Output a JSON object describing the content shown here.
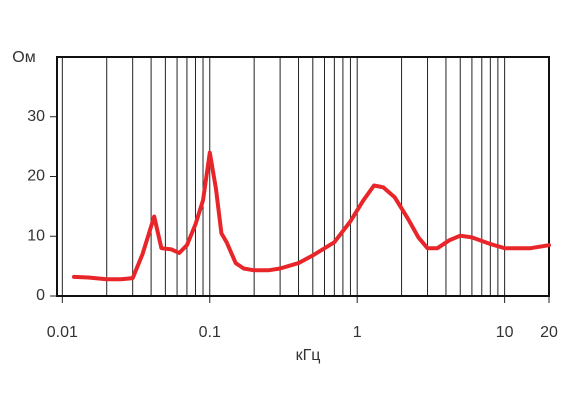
{
  "chart_data": {
    "type": "line",
    "xlabel": "кГц",
    "ylabel": "Ом",
    "x": [
      0.012,
      0.015,
      0.02,
      0.025,
      0.03,
      0.035,
      0.042,
      0.047,
      0.055,
      0.062,
      0.07,
      0.08,
      0.09,
      0.1,
      0.11,
      0.12,
      0.13,
      0.15,
      0.17,
      0.2,
      0.25,
      0.3,
      0.4,
      0.5,
      0.7,
      0.9,
      1.1,
      1.3,
      1.5,
      1.8,
      2.2,
      2.6,
      3,
      3.5,
      4.2,
      5,
      6,
      8,
      10,
      15,
      20
    ],
    "series": [
      {
        "color": "#e8262a",
        "values": [
          3.2,
          3.1,
          2.8,
          2.8,
          3,
          7,
          13.3,
          8,
          7.8,
          7.2,
          8.5,
          12,
          16,
          24,
          18,
          10.5,
          9,
          5.5,
          4.6,
          4.3,
          4.3,
          4.6,
          5.5,
          6.8,
          9,
          12.5,
          16,
          18.5,
          18.2,
          16.5,
          13,
          9.8,
          8,
          8,
          9.3,
          10.1,
          9.8,
          8.7,
          8,
          8,
          8.5
        ]
      }
    ],
    "xscale": "log",
    "xlim": [
      0.0092,
      20
    ],
    "xticks": [
      0.01,
      0.1,
      1,
      10,
      20
    ],
    "x_minor_ticks": [
      0.02,
      0.03,
      0.04,
      0.05,
      0.06,
      0.07,
      0.08,
      0.09,
      0.2,
      0.3,
      0.4,
      0.5,
      0.6,
      0.7,
      0.8,
      0.9,
      2,
      3,
      4,
      5,
      6,
      7,
      8,
      9
    ],
    "ylim": [
      0,
      40
    ],
    "yticks": [
      0,
      10,
      20,
      30
    ],
    "grid": true
  }
}
